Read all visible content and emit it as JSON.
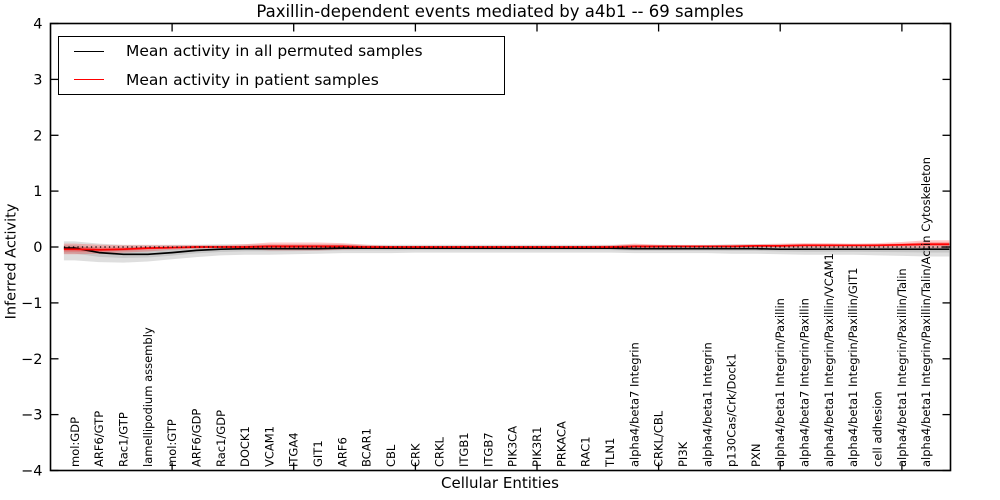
{
  "chart_data": {
    "type": "line",
    "title": "Paxillin-dependent events mediated by a4b1 -- 69 samples",
    "xlabel": "Cellular Entities",
    "ylabel": "Inferred Activity",
    "ylim": [
      -4,
      4
    ],
    "yticks": [
      -4,
      -3,
      -2,
      -1,
      0,
      1,
      2,
      3,
      4
    ],
    "xticks": [
      5,
      10,
      15,
      20,
      25,
      30,
      35
    ],
    "grid": false,
    "legend_position": "upper left",
    "zero_line": {
      "y": 0,
      "style": "dotted",
      "color": "#000000"
    },
    "categories": [
      "mol:GDP",
      "ARF6/GTP",
      "Rac1/GTP",
      "lamellipodium assembly",
      "mol:GTP",
      "ARF6/GDP",
      "Rac1/GDP",
      "DOCK1",
      "VCAM1",
      "ITGA4",
      "GIT1",
      "ARF6",
      "BCAR1",
      "CBL",
      "CRK",
      "CRKL",
      "ITGB1",
      "ITGB7",
      "PIK3CA",
      "PIK3R1",
      "PRKACA",
      "RAC1",
      "TLN1",
      "alpha4/beta7 Integrin",
      "CRKL/CBL",
      "PI3K",
      "alpha4/beta1 Integrin",
      "p130Cas/Crk/Dock1",
      "PXN",
      "alpha4/beta1 Integrin/Paxillin",
      "alpha4/beta7 Integrin/Paxillin",
      "alpha4/beta1 Integrin/Paxillin/VCAM1",
      "alpha4/beta1 Integrin/Paxillin/GIT1",
      "cell adhesion",
      "alpha4/beta1 Integrin/Paxillin/Talin",
      "alpha4/beta1 Integrin/Paxillin/Talin/Actin Cytoskeleton"
    ],
    "series": [
      {
        "name": "Mean activity in all permuted samples",
        "color": "#000000",
        "band_color": "rgba(0,0,0,0.13)",
        "band_inner_color": "rgba(0,0,0,0.10)",
        "values": [
          -0.02,
          -0.1,
          -0.13,
          -0.13,
          -0.1,
          -0.06,
          -0.04,
          -0.03,
          -0.03,
          -0.03,
          -0.03,
          -0.02,
          -0.02,
          -0.02,
          -0.02,
          -0.02,
          -0.02,
          -0.02,
          -0.02,
          -0.02,
          -0.02,
          -0.02,
          -0.02,
          -0.03,
          -0.03,
          -0.03,
          -0.03,
          -0.03,
          -0.03,
          -0.04,
          -0.04,
          -0.04,
          -0.04,
          -0.04,
          -0.04,
          -0.04
        ],
        "band_hi": [
          0.1,
          0.06,
          0.04,
          0.04,
          0.04,
          0.04,
          0.05,
          0.05,
          0.05,
          0.05,
          0.05,
          0.05,
          0.04,
          0.04,
          0.04,
          0.04,
          0.04,
          0.04,
          0.04,
          0.04,
          0.04,
          0.04,
          0.04,
          0.04,
          0.04,
          0.04,
          0.04,
          0.05,
          0.05,
          0.05,
          0.05,
          0.05,
          0.05,
          0.05,
          0.05,
          0.06
        ],
        "band_lo": [
          -0.24,
          -0.27,
          -0.28,
          -0.26,
          -0.22,
          -0.18,
          -0.15,
          -0.14,
          -0.14,
          -0.13,
          -0.12,
          -0.11,
          -0.11,
          -0.11,
          -0.1,
          -0.1,
          -0.1,
          -0.1,
          -0.1,
          -0.1,
          -0.1,
          -0.1,
          -0.1,
          -0.11,
          -0.11,
          -0.11,
          -0.11,
          -0.12,
          -0.12,
          -0.13,
          -0.14,
          -0.14,
          -0.14,
          -0.15,
          -0.16,
          -0.17
        ]
      },
      {
        "name": "Mean activity in patient samples",
        "color": "#ff0000",
        "band_color": "rgba(255,0,0,0.22)",
        "band_inner_color": "rgba(255,0,0,0.30)",
        "values": [
          -0.04,
          -0.05,
          -0.04,
          -0.02,
          -0.01,
          0.0,
          0.0,
          0.0,
          0.01,
          0.01,
          0.01,
          0.01,
          0.0,
          0.0,
          0.0,
          0.0,
          0.0,
          0.0,
          0.0,
          0.0,
          0.0,
          0.0,
          0.0,
          0.01,
          0.01,
          0.01,
          0.01,
          0.01,
          0.02,
          0.02,
          0.03,
          0.03,
          0.03,
          0.03,
          0.04,
          0.05
        ],
        "band_hi": [
          0.06,
          0.04,
          0.03,
          0.03,
          0.03,
          0.03,
          0.03,
          0.05,
          0.08,
          0.08,
          0.08,
          0.07,
          0.04,
          0.02,
          0.02,
          0.02,
          0.02,
          0.02,
          0.02,
          0.02,
          0.02,
          0.02,
          0.03,
          0.06,
          0.04,
          0.03,
          0.03,
          0.04,
          0.05,
          0.06,
          0.07,
          0.07,
          0.06,
          0.07,
          0.09,
          0.12
        ],
        "band_lo": [
          -0.13,
          -0.12,
          -0.1,
          -0.08,
          -0.05,
          -0.03,
          -0.02,
          -0.04,
          -0.06,
          -0.06,
          -0.06,
          -0.05,
          -0.03,
          -0.02,
          -0.02,
          -0.02,
          -0.02,
          -0.02,
          -0.02,
          -0.02,
          -0.02,
          -0.02,
          -0.02,
          -0.03,
          -0.02,
          -0.01,
          -0.01,
          -0.01,
          -0.01,
          -0.01,
          -0.01,
          -0.01,
          -0.01,
          -0.01,
          -0.01,
          -0.02
        ]
      }
    ]
  },
  "colors": {
    "background": "#ffffff",
    "frame": "#000000",
    "permuted_line": "#000000",
    "patient_line": "#ff0000"
  }
}
